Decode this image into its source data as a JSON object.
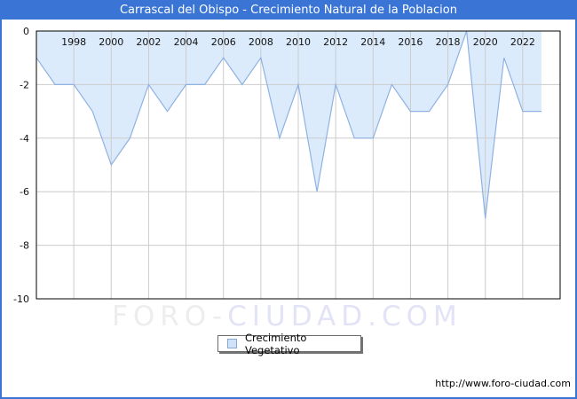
{
  "header": {
    "title": "Carrascal del Obispo - Crecimiento Natural de la Poblacion"
  },
  "legend": {
    "label": "Crecimiento Vegetativo"
  },
  "watermark": {
    "part1": "FORO-",
    "part2": "CIUDAD.COM"
  },
  "footer": {
    "url": "http://www.foro-ciudad.com"
  },
  "colors": {
    "titlebar": "#3a75d6",
    "frame_border": "#3a75d6",
    "area_fill": "#dcebfc",
    "line": "#8fb2e2",
    "grid": "#cccccc",
    "plot_border": "#000000",
    "tick_text": "#111111",
    "legend_swatch_fill": "#cfe2f8",
    "legend_swatch_border": "#89a6d6"
  },
  "chart_data": {
    "type": "area",
    "title": "Carrascal del Obispo - Crecimiento Natural de la Poblacion",
    "xlabel": "",
    "ylabel": "",
    "xlim": [
      1996,
      2024
    ],
    "ylim": [
      -10,
      0
    ],
    "grid": true,
    "legend_position": "bottom",
    "x_ticks": [
      1998,
      2000,
      2002,
      2004,
      2006,
      2008,
      2010,
      2012,
      2014,
      2016,
      2018,
      2020,
      2022
    ],
    "y_ticks": [
      0,
      -2,
      -4,
      -6,
      -8,
      -10
    ],
    "series": [
      {
        "name": "Crecimiento Vegetativo",
        "x": [
          1996,
          1997,
          1998,
          1999,
          2000,
          2001,
          2002,
          2003,
          2004,
          2005,
          2006,
          2007,
          2008,
          2009,
          2010,
          2011,
          2012,
          2013,
          2014,
          2015,
          2016,
          2017,
          2018,
          2019,
          2020,
          2021,
          2022,
          2023
        ],
        "values": [
          -1,
          -2,
          -2,
          -3,
          -5,
          -4,
          -2,
          -3,
          -2,
          -2,
          -1,
          -2,
          -1,
          -4,
          -2,
          -6,
          -2,
          -4,
          -4,
          -2,
          -3,
          -3,
          -2,
          0,
          -7,
          -1,
          -3,
          -3
        ]
      }
    ]
  }
}
